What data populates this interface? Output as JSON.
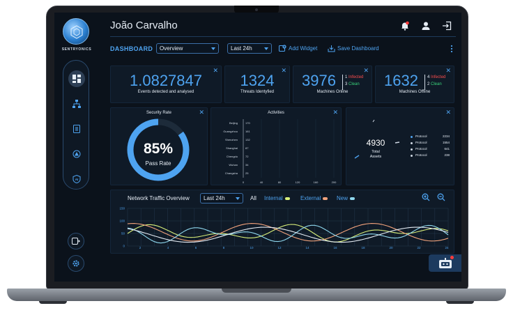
{
  "sidebar": {
    "brand": "SENTRYONICS",
    "items": [
      {
        "icon": "dashboard-icon",
        "active": true
      },
      {
        "icon": "network-tree-icon",
        "active": false
      },
      {
        "icon": "document-icon",
        "active": false
      },
      {
        "icon": "alert-target-icon",
        "active": false
      },
      {
        "icon": "ai-shield-icon",
        "active": false
      }
    ],
    "bottom": [
      {
        "icon": "logout-panel-icon"
      },
      {
        "icon": "settings-gear-icon"
      }
    ]
  },
  "header": {
    "user_name": "João Carvalho",
    "icons": [
      "notification-bell-icon",
      "user-profile-icon",
      "exit-icon"
    ],
    "notification_color": "#ff3b3b"
  },
  "toolbar": {
    "dashboard_label": "DASHBOARD",
    "view_select": "Overview",
    "range_select": "Last 24h",
    "add_widget": "Add Widget",
    "save_dashboard": "Save Dashboard"
  },
  "stats": {
    "events": {
      "value": "1.0827847",
      "caption": "Events detected and analysed"
    },
    "threats": {
      "value": "1324",
      "caption": "Threats Identyfied"
    },
    "online": {
      "value": "3976",
      "infected_n": "1",
      "infected_label": "Infected",
      "clean_n": "3",
      "clean_label": "Clean",
      "caption": "Machines Online"
    },
    "offline": {
      "value": "1632",
      "infected_n": "4",
      "infected_label": "Infected",
      "clean_n": "2",
      "clean_label": "Clean",
      "caption": "Machines Offline"
    }
  },
  "security_rate": {
    "title": "Security Rate",
    "value_text": "85%",
    "value": 0.85,
    "caption": "Pass Rate"
  },
  "activities": {
    "title": "Activities",
    "rows": [
      {
        "city": "Beijing",
        "value": "170"
      },
      {
        "city": "Guangzhou",
        "value": "161"
      },
      {
        "city": "Shenzhen",
        "value": "132"
      },
      {
        "city": "Shanghai",
        "value": "87"
      },
      {
        "city": "Chengdu",
        "value": "72"
      },
      {
        "city": "Wuhan",
        "value": "34"
      },
      {
        "city": "Changsha",
        "value": "25"
      }
    ],
    "xticks": [
      "0",
      "40",
      "80",
      "120",
      "160",
      "200"
    ]
  },
  "assets": {
    "total": "4930",
    "label_line1": "Total",
    "label_line2": "Assets",
    "legend": [
      {
        "label": "Protocol",
        "value": "2234"
      },
      {
        "label": "Protocol",
        "value": "1554"
      },
      {
        "label": "Protocol",
        "value": "641"
      },
      {
        "label": "Protocol",
        "value": "238"
      }
    ]
  },
  "network": {
    "title": "Network Traffic Overview",
    "range_select": "Last 24h",
    "legend_all": "All",
    "legend_internal": "Internal",
    "legend_external": "External",
    "legend_new": "New",
    "colors": {
      "internal": "#d9f07a",
      "external": "#f2a37c",
      "new": "#8fd8ee",
      "accent": "#4ea3f0"
    },
    "yticks": [
      "150",
      "100",
      "50",
      "0"
    ],
    "xticks": [
      "2",
      "4",
      "6",
      "8",
      "10",
      "12",
      "14",
      "16",
      "18",
      "20",
      "22",
      "24"
    ]
  }
}
